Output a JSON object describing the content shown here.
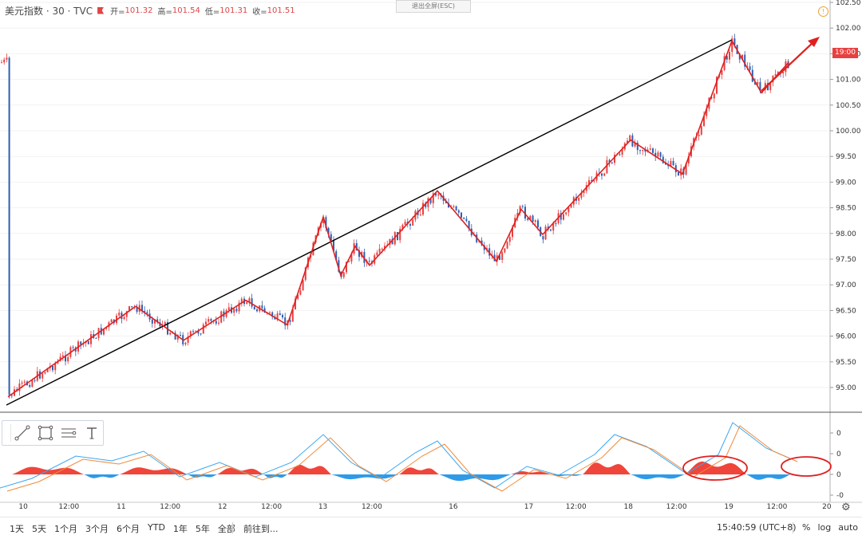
{
  "header": {
    "symbol": "美元指数 · 30 · TVC",
    "open_label": "开=",
    "open": "101.32",
    "high_label": "高=",
    "high": "101.54",
    "low_label": "低=",
    "low": "101.31",
    "close_label": "收=",
    "close": "101.51"
  },
  "exit_fullscreen": "退出全屏(ESC)",
  "current_price_tag": "19:00",
  "price_axis": [
    "102.50",
    "102.00",
    "101.50",
    "101.00",
    "100.50",
    "100.00",
    "99.50",
    "99.00",
    "98.50",
    "98.00",
    "97.50",
    "97.00",
    "96.50",
    "96.00",
    "95.50",
    "95.00"
  ],
  "indicator_axis": [
    "0",
    "0",
    "0",
    "-0"
  ],
  "date_labels": [
    "10",
    "12:00",
    "11",
    "12:00",
    "12",
    "12:00",
    "13",
    "12:00",
    "16",
    "17",
    "12:00",
    "18",
    "12:00",
    "19",
    "12:00",
    "20"
  ],
  "date_label_fracs": [
    0.028,
    0.083,
    0.146,
    0.205,
    0.268,
    0.327,
    0.389,
    0.448,
    0.546,
    0.637,
    0.694,
    0.757,
    0.815,
    0.878,
    0.936,
    0.996
  ],
  "bottom_bar": {
    "ranges": [
      "1天",
      "5天",
      "1个月",
      "3个月",
      "6个月",
      "YTD",
      "1年",
      "5年",
      "全部"
    ],
    "goto": "前往到...",
    "time": "15:40:59 (UTC+8)",
    "opts": [
      "%",
      "log",
      "auto"
    ]
  },
  "tools": [
    "trend-line-icon",
    "rectangle-icon",
    "fib-lines-icon",
    "text-icon"
  ],
  "colors": {
    "up": "#e84040",
    "down": "#2f5fb0",
    "macd_pos": "#f0453a",
    "macd_neg": "#2e9ae8",
    "trend": "#000000",
    "zigzag": "#e02020",
    "fast": "#3ba7f0",
    "slow": "#f08a3a"
  },
  "chart_data": {
    "type": "candlestick",
    "ylim": [
      94.7,
      102.6
    ],
    "zigzag_prices": [
      94.82,
      96.58,
      95.92,
      96.7,
      96.22,
      98.32,
      97.18,
      97.75,
      97.38,
      98.83,
      97.46,
      98.47,
      97.98,
      99.82,
      99.16,
      101.75,
      100.74,
      101.33
    ]
  }
}
